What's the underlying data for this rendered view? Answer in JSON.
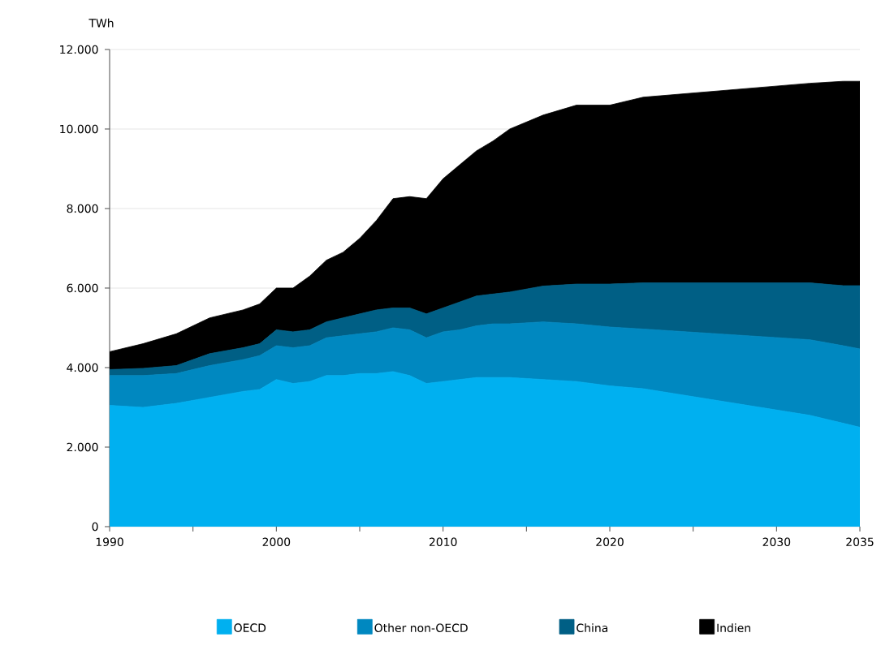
{
  "chart_data": {
    "type": "area",
    "stacked": true,
    "ylabel": "TWh",
    "x": [
      1990,
      1992,
      1994,
      1996,
      1998,
      1999,
      2000,
      2001,
      2002,
      2003,
      2004,
      2005,
      2006,
      2007,
      2008,
      2009,
      2010,
      2011,
      2012,
      2013,
      2014,
      2016,
      2018,
      2020,
      2022,
      2032,
      2034,
      2035
    ],
    "series": [
      {
        "name": "OECD",
        "color": "#00b0f0",
        "values": [
          3050,
          3000,
          3100,
          3250,
          3400,
          3450,
          3700,
          3600,
          3650,
          3800,
          3800,
          3850,
          3850,
          3900,
          3800,
          3600,
          3650,
          3700,
          3750,
          3750,
          3750,
          3700,
          3650,
          3540,
          3470,
          2800,
          2600,
          2500
        ]
      },
      {
        "name": "Other non-OECD",
        "color": "#0088c0",
        "values": [
          750,
          800,
          750,
          800,
          800,
          850,
          850,
          900,
          900,
          950,
          1000,
          1000,
          1050,
          1100,
          1150,
          1150,
          1250,
          1250,
          1300,
          1350,
          1350,
          1450,
          1450,
          1480,
          1500,
          1900,
          1950,
          1970
        ]
      },
      {
        "name": "China",
        "color": "#005f85",
        "values": [
          150,
          180,
          200,
          300,
          300,
          300,
          400,
          400,
          400,
          400,
          450,
          500,
          550,
          500,
          550,
          600,
          600,
          700,
          750,
          750,
          800,
          900,
          1000,
          1080,
          1160,
          1430,
          1510,
          1590
        ]
      },
      {
        "name": "Indien",
        "color": "#000000",
        "values": [
          450,
          620,
          800,
          900,
          950,
          1000,
          1050,
          1100,
          1350,
          1550,
          1650,
          1900,
          2250,
          2750,
          2800,
          2900,
          3250,
          3450,
          3650,
          3850,
          4100,
          4300,
          4500,
          4500,
          4670,
          5020,
          5140,
          5140
        ]
      }
    ],
    "xlim": [
      1990,
      2035
    ],
    "xticks": [
      1990,
      {
        "value": 1995,
        "label": null
      },
      2000,
      {
        "value": 2005,
        "label": null
      },
      2010,
      {
        "value": 2015,
        "label": null
      },
      2020,
      {
        "value": 2025,
        "label": null
      },
      2030,
      2035
    ],
    "ylim": [
      0,
      12000
    ],
    "yticks": [
      0,
      {
        "value": 2000,
        "label": "2.000"
      },
      {
        "value": 4000,
        "label": "4.000"
      },
      {
        "value": 6000,
        "label": "6.000"
      },
      {
        "value": 8000,
        "label": "8.000"
      },
      {
        "value": 10000,
        "label": "10.000"
      },
      {
        "value": 12000,
        "label": "12.000"
      }
    ],
    "grid": "y",
    "legend": "bottom"
  }
}
